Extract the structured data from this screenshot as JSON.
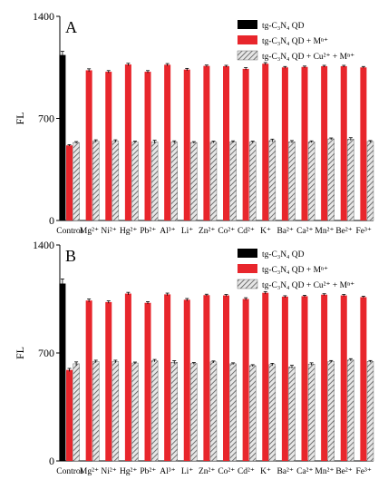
{
  "chart_data": [
    {
      "type": "bar",
      "panel_label": "A",
      "ylabel": "FL",
      "ylim": [
        0,
        1400
      ],
      "yticks": [
        "0",
        "700",
        "1400"
      ],
      "legend_position": "top-right",
      "legend": [
        {
          "text": "tg-C₃N₄ QD",
          "style": "solid-black"
        },
        {
          "text": "tg-C₃N₄ QD + Mⁿ⁺",
          "style": "solid-red"
        },
        {
          "text": "tg-C₃N₄ QD + Cu²⁺ + Mⁿ⁺",
          "style": "hatched-gray"
        }
      ],
      "categories": [
        "Control",
        "Mg²⁺",
        "Ni²⁺",
        "Hg²⁺",
        "Pb²⁺",
        "Al³⁺",
        "Li⁺",
        "Zn²⁺",
        "Co²⁺",
        "Cd²⁺",
        "K⁺",
        "Ba²⁺",
        "Ca²⁺",
        "Mn²⁺",
        "Be²⁺",
        "Fe³⁺"
      ],
      "series": [
        {
          "name": "tg-C₃N₄ QD",
          "values": [
            1135,
            null,
            null,
            null,
            null,
            null,
            null,
            null,
            null,
            null,
            null,
            null,
            null,
            null,
            null,
            null
          ]
        },
        {
          "name": "tg-C₃N₄ QD + Mⁿ⁺",
          "values": [
            515,
            1030,
            1020,
            1070,
            1020,
            1068,
            1035,
            1060,
            1058,
            1040,
            1075,
            1050,
            1053,
            1058,
            1058,
            1050
          ]
        },
        {
          "name": "tg-C₃N₄ QD + Cu²⁺ + Mⁿ⁺",
          "values": [
            535,
            545,
            545,
            538,
            540,
            538,
            535,
            538,
            540,
            538,
            548,
            540,
            540,
            560,
            558,
            542
          ]
        }
      ],
      "errors": [
        [
          25,
          null,
          null,
          null,
          null,
          null,
          null,
          null,
          null,
          null,
          null,
          null,
          null,
          null,
          null,
          null
        ],
        [
          5,
          10,
          8,
          8,
          8,
          8,
          8,
          6,
          6,
          8,
          8,
          6,
          6,
          6,
          6,
          6
        ],
        [
          6,
          8,
          8,
          6,
          10,
          8,
          6,
          6,
          6,
          6,
          10,
          8,
          6,
          6,
          10,
          6
        ]
      ]
    },
    {
      "type": "bar",
      "panel_label": "B",
      "ylabel": "FL",
      "ylim": [
        0,
        1400
      ],
      "yticks": [
        "0",
        "700",
        "1400"
      ],
      "legend_position": "top-right",
      "legend": [
        {
          "text": "tg-C₃N₄ QD",
          "style": "solid-black"
        },
        {
          "text": "tg-C₃N₄ QD + Mⁿ⁺",
          "style": "solid-red"
        },
        {
          "text": "tg-C₃N₄ QD + Cu²⁺ + Mⁿ⁺",
          "style": "hatched-gray"
        }
      ],
      "categories": [
        "Control",
        "Mg²⁺",
        "Ni²⁺",
        "Hg²⁺",
        "Pb²⁺",
        "Al³⁺",
        "Li⁺",
        "Zn²⁺",
        "Co²⁺",
        "Cd²⁺",
        "K⁺",
        "Ba²⁺",
        "Ca²⁺",
        "Mn²⁺",
        "Be²⁺",
        "Fe³⁺"
      ],
      "series": [
        {
          "name": "tg-C₃N₄ QD",
          "values": [
            1150,
            null,
            null,
            null,
            null,
            null,
            null,
            null,
            null,
            null,
            null,
            null,
            null,
            null,
            null,
            null
          ]
        },
        {
          "name": "tg-C₃N₄ QD + Mⁿ⁺",
          "values": [
            590,
            1040,
            1030,
            1085,
            1025,
            1080,
            1045,
            1075,
            1073,
            1050,
            1090,
            1065,
            1068,
            1078,
            1073,
            1062
          ]
        },
        {
          "name": "tg-C₃N₄ QD + Cu²⁺ + Mⁿ⁺",
          "values": [
            630,
            645,
            645,
            635,
            650,
            640,
            632,
            642,
            630,
            618,
            625,
            610,
            628,
            645,
            655,
            645
          ]
        }
      ],
      "errors": [
        [
          30,
          null,
          null,
          null,
          null,
          null,
          null,
          null,
          null,
          null,
          null,
          null,
          null,
          null,
          null,
          null
        ],
        [
          10,
          10,
          8,
          8,
          8,
          8,
          8,
          6,
          6,
          8,
          8,
          6,
          6,
          6,
          6,
          6
        ],
        [
          12,
          8,
          8,
          6,
          8,
          10,
          6,
          6,
          6,
          6,
          8,
          10,
          8,
          6,
          8,
          6
        ]
      ]
    }
  ],
  "colors": {
    "black": "#000000",
    "red": "#e8262c",
    "hatch_stroke": "#555555",
    "hatch_bg": "#e6e6e6"
  }
}
